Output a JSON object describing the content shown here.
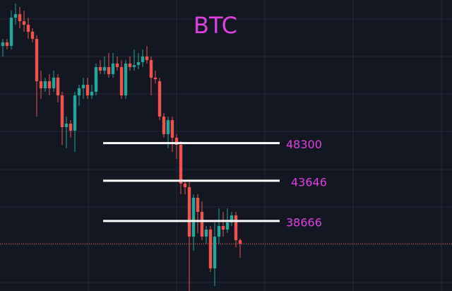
{
  "chart_data": {
    "type": "candlestick",
    "title": "BTC",
    "up_color": "#26a69a",
    "down_color": "#ef5350",
    "level_color": "#ffffff",
    "text_color": "#e040e0",
    "ylim": [
      30000,
      66000
    ],
    "grid": true,
    "levels": [
      48300,
      43646,
      38666
    ],
    "open": [
      60320,
      60760,
      60320,
      63810,
      64250,
      63380,
      62940,
      62070,
      61190,
      55950,
      55080,
      55950,
      55080,
      56390,
      54200,
      50270,
      50710,
      49830,
      54200,
      55080,
      55510,
      54200,
      54640,
      57700,
      57260,
      57700,
      56820,
      58140,
      57700,
      54200,
      58140,
      57700,
      57960,
      58310,
      59010,
      58570,
      56390,
      55950,
      51580,
      49400,
      51140,
      48960,
      48080,
      43280,
      42840,
      36730,
      41530,
      39790,
      36730,
      37600,
      32800,
      36730,
      38040,
      37600,
      38480,
      39350,
      36290
    ],
    "high": [
      61190,
      61190,
      64690,
      65560,
      65130,
      64690,
      63810,
      62500,
      61630,
      57260,
      56390,
      56820,
      57260,
      56820,
      54640,
      51580,
      51140,
      54640,
      55510,
      56390,
      56390,
      55510,
      58140,
      58570,
      59010,
      59450,
      59450,
      59010,
      58570,
      58570,
      59010,
      59880,
      59450,
      59880,
      60320,
      59010,
      57260,
      56390,
      52020,
      51580,
      51580,
      49400,
      48520,
      43720,
      43720,
      41970,
      41970,
      41090,
      38040,
      38040,
      38480,
      40220,
      39790,
      40220,
      39790,
      39790,
      36470
    ],
    "low": [
      59010,
      59890,
      59890,
      62940,
      62500,
      62070,
      61190,
      60760,
      51580,
      53770,
      54640,
      54200,
      54640,
      53330,
      48080,
      47650,
      48960,
      47210,
      52890,
      53770,
      53770,
      53770,
      54200,
      56820,
      56820,
      56390,
      56390,
      57260,
      53770,
      53770,
      57260,
      57260,
      57440,
      57700,
      58140,
      54200,
      55690,
      51140,
      48960,
      47650,
      47210,
      46340,
      41970,
      41970,
      30000,
      34980,
      37170,
      36290,
      35850,
      32360,
      30610,
      35850,
      36730,
      37170,
      38040,
      35410,
      34100
    ],
    "close": [
      60760,
      60320,
      63810,
      64250,
      63380,
      62940,
      62070,
      61190,
      55950,
      55080,
      55950,
      55080,
      56390,
      54200,
      50270,
      50710,
      49830,
      54200,
      55080,
      55510,
      54200,
      54640,
      57700,
      57260,
      57700,
      56820,
      58140,
      57700,
      54200,
      58140,
      57700,
      57960,
      58310,
      59010,
      58570,
      56390,
      56210,
      51580,
      49400,
      51140,
      48960,
      48080,
      43280,
      42840,
      36730,
      41530,
      39790,
      36730,
      37600,
      32800,
      36730,
      38040,
      37600,
      38480,
      39350,
      36290,
      35850
    ]
  }
}
